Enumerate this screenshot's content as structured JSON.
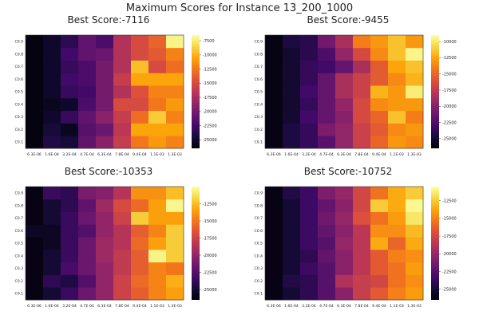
{
  "figure": {
    "suptitle": "Maximum Scores for Instance 13_200_1000"
  },
  "colormap": "inferno",
  "chart_data": [
    {
      "type": "heatmap",
      "title": "Best Score:-7116",
      "x_categories": [
        "6.3E-06",
        "1.6E-04",
        "3.2E-04",
        "4.7E-04",
        "6.3E-04",
        "7.8E-04",
        "9.4E-04",
        "1.1E-03",
        "1.3E-03"
      ],
      "y_categories": [
        "C0.1",
        "C0.2",
        "C0.3",
        "C0.4",
        "C0.5",
        "C0.6",
        "C0.7",
        "C0.8",
        "C0.9"
      ],
      "zlim": [
        -26500,
        -6500
      ],
      "colorbar_ticks": [
        -25000,
        -22500,
        -20000,
        -17500,
        -15000,
        -12500,
        -10000,
        -7500
      ],
      "colorbar_tick_labels": [
        "-25000",
        "-22500",
        "-20000",
        "-17500",
        "-15000",
        "-12500",
        "-10000",
        "-7500"
      ],
      "values": [
        [
          -26000,
          -24000,
          -24500,
          -21000,
          -19000,
          -16000,
          -12500,
          -11000,
          -12000
        ],
        [
          -26000,
          -24500,
          -25500,
          -21500,
          -20500,
          -16500,
          -10500,
          -10500,
          -10500
        ],
        [
          -26000,
          -25000,
          -23000,
          -21000,
          -19000,
          -16000,
          -13000,
          -9000,
          -12000
        ],
        [
          -26000,
          -25500,
          -25000,
          -22000,
          -20000,
          -15000,
          -15000,
          -12500,
          -11000
        ],
        [
          -26000,
          -25000,
          -23000,
          -22500,
          -20000,
          -17000,
          -14500,
          -12000,
          -12000
        ],
        [
          -26000,
          -25000,
          -22500,
          -22000,
          -20000,
          -16000,
          -10500,
          -10500,
          -10500
        ],
        [
          -26000,
          -25000,
          -23000,
          -22000,
          -20000,
          -17000,
          -9500,
          -15000,
          -13000
        ],
        [
          -26000,
          -25000,
          -22500,
          -21000,
          -20500,
          -17000,
          -15000,
          -14000,
          -12000
        ],
        [
          -26000,
          -25000,
          -23500,
          -21000,
          -22000,
          -17000,
          -15000,
          -13500,
          -7100
        ]
      ]
    },
    {
      "type": "heatmap",
      "title": "Best Score:-9455",
      "x_categories": [
        "6.3E-06",
        "1.6E-04",
        "3.2E-04",
        "4.7E-04",
        "6.3E-04",
        "7.8E-04",
        "9.4E-04",
        "1.1E-03",
        "1.3E-03"
      ],
      "y_categories": [
        "C0.1",
        "C0.2",
        "C0.3",
        "C0.4",
        "C0.5",
        "C0.6",
        "C0.7",
        "C0.8",
        "C0.9"
      ],
      "zlim": [
        -26500,
        -9000
      ],
      "colorbar_ticks": [
        -25000,
        -22500,
        -20000,
        -17500,
        -15000,
        -12500,
        -10000
      ],
      "colorbar_tick_labels": [
        "-25000",
        "-22500",
        "-20000",
        "-17500",
        "-15000",
        "-12500",
        "-10000"
      ],
      "values": [
        [
          -26000,
          -24500,
          -23500,
          -22000,
          -19500,
          -17000,
          -15000,
          -13000,
          -13500
        ],
        [
          -26000,
          -24500,
          -23500,
          -20500,
          -19500,
          -17000,
          -15500,
          -13500,
          -13000
        ],
        [
          -26000,
          -25000,
          -23000,
          -21500,
          -20000,
          -16500,
          -15000,
          -11500,
          -14000
        ],
        [
          -26000,
          -25000,
          -23500,
          -21500,
          -19500,
          -16500,
          -13500,
          -13000,
          -13000
        ],
        [
          -26000,
          -25000,
          -23000,
          -21500,
          -18500,
          -17000,
          -12000,
          -13000,
          -9800
        ],
        [
          -26000,
          -25000,
          -23500,
          -21500,
          -18500,
          -17000,
          -15500,
          -13500,
          -12000
        ],
        [
          -26000,
          -25000,
          -23500,
          -23000,
          -21500,
          -18500,
          -15500,
          -12500,
          -11500
        ],
        [
          -26000,
          -25000,
          -24000,
          -22500,
          -19500,
          -16500,
          -13500,
          -11500,
          -9500
        ],
        [
          -26000,
          -24500,
          -24000,
          -21000,
          -18500,
          -14000,
          -13000,
          -11500,
          -13000
        ]
      ]
    },
    {
      "type": "heatmap",
      "title": "Best Score:-10353",
      "x_categories": [
        "6.3E-06",
        "1.6E-04",
        "3.2E-04",
        "4.7E-04",
        "6.3E-04",
        "7.8E-04",
        "9.4E-04",
        "1.1E-03",
        "1.3E-03"
      ],
      "y_categories": [
        "C0.1",
        "C0.2",
        "C0.3",
        "C0.4",
        "C0.5",
        "C0.6",
        "C0.7",
        "C0.8",
        "C0.9"
      ],
      "zlim": [
        -26500,
        -10000
      ],
      "colorbar_ticks": [
        -25000,
        -22500,
        -20000,
        -17500,
        -15000,
        -12500
      ],
      "colorbar_tick_labels": [
        "-25000",
        "-22500",
        "-20000",
        "-17500",
        "-15000",
        "-12500"
      ],
      "values": [
        [
          -26000,
          -25000,
          -23500,
          -21500,
          -20000,
          -17500,
          -16000,
          -14500,
          -13500
        ],
        [
          -26000,
          -24000,
          -24500,
          -22500,
          -20000,
          -17500,
          -15500,
          -14500,
          -13000
        ],
        [
          -26000,
          -25000,
          -23000,
          -21500,
          -20000,
          -18000,
          -16000,
          -14500,
          -15000
        ],
        [
          -26000,
          -25000,
          -23500,
          -21500,
          -19500,
          -18000,
          -16000,
          -10500,
          -12000
        ],
        [
          -26000,
          -25500,
          -23500,
          -21500,
          -19500,
          -18500,
          -15500,
          -13500,
          -12000
        ],
        [
          -25500,
          -25500,
          -23500,
          -22500,
          -20000,
          -18500,
          -16000,
          -14500,
          -12000
        ],
        [
          -26000,
          -25000,
          -23500,
          -21500,
          -20000,
          -17500,
          -12000,
          -13500,
          -13500
        ],
        [
          -26000,
          -25000,
          -24000,
          -22000,
          -19500,
          -17000,
          -15500,
          -13500,
          -10400
        ],
        [
          -26000,
          -23500,
          -24000,
          -21000,
          -20500,
          -18500,
          -14000,
          -14000,
          -12500
        ]
      ]
    },
    {
      "type": "heatmap",
      "title": "Best Score:-10752",
      "x_categories": [
        "6.3E-06",
        "1.6E-04",
        "3.2E-04",
        "4.7E-04",
        "6.3E-04",
        "7.8E-04",
        "9.4E-04",
        "1.1E-03",
        "1.3E-03"
      ],
      "y_categories": [
        "C0.1",
        "C0.2",
        "C0.3",
        "C0.4",
        "C0.5",
        "C0.6",
        "C0.7",
        "C0.8",
        "C0.9"
      ],
      "zlim": [
        -26500,
        -10500
      ],
      "colorbar_ticks": [
        -25000,
        -22500,
        -20000,
        -17500,
        -15000,
        -12500
      ],
      "colorbar_tick_labels": [
        "-25000",
        "-22500",
        "-20000",
        "-17500",
        "-15000",
        "-12500"
      ],
      "values": [
        [
          -26000,
          -25000,
          -24000,
          -22500,
          -20500,
          -18000,
          -16500,
          -15000,
          -14000
        ],
        [
          -26000,
          -24500,
          -24000,
          -22500,
          -19000,
          -18000,
          -17500,
          -15500,
          -14500
        ],
        [
          -26000,
          -25000,
          -23500,
          -22500,
          -20500,
          -18500,
          -16500,
          -15500,
          -14000
        ],
        [
          -26000,
          -25000,
          -24000,
          -22000,
          -20500,
          -18500,
          -16500,
          -15000,
          -14500
        ],
        [
          -26000,
          -25000,
          -23500,
          -22500,
          -20000,
          -18500,
          -13500,
          -16000,
          -13500
        ],
        [
          -26000,
          -25000,
          -23500,
          -22000,
          -20500,
          -18500,
          -14500,
          -14500,
          -13000
        ],
        [
          -26000,
          -25000,
          -23500,
          -21500,
          -20000,
          -17000,
          -15500,
          -14000,
          -11500
        ],
        [
          -26000,
          -25000,
          -23500,
          -22000,
          -20500,
          -17500,
          -12500,
          -13500,
          -10800
        ],
        [
          -26000,
          -24500,
          -23500,
          -21000,
          -20000,
          -17500,
          -15500,
          -13500,
          -12500
        ]
      ]
    }
  ]
}
